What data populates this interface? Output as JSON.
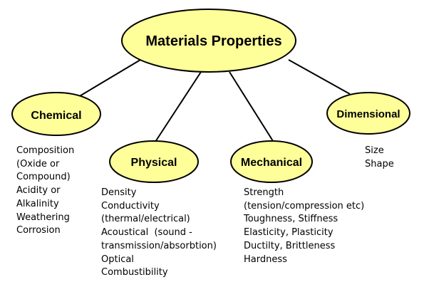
{
  "diagram": {
    "root": {
      "label": "Materials Properties"
    },
    "fill_color": "#FFFF99",
    "stroke_color": "#000000",
    "branches": [
      {
        "label": "Chemical",
        "details": [
          "Composition",
          "(Oxide or",
          "Compound)",
          "Acidity or",
          "Alkalinity",
          "Weathering",
          "Corrosion"
        ]
      },
      {
        "label": "Physical",
        "details": [
          "Density",
          "Conductivity",
          "(thermal/electrical)",
          "Acoustical  (sound -",
          "transmission/absorbtion)",
          "Optical",
          "Combustibility"
        ]
      },
      {
        "label": "Mechanical",
        "details": [
          "Strength",
          "(tension/compression etc)",
          "Toughness, Stiffness",
          "Elasticity, Plasticity",
          "Ductilty, Brittleness",
          "Hardness"
        ]
      },
      {
        "label": "Dimensional",
        "details": [
          "Size",
          "Shape"
        ]
      }
    ]
  }
}
